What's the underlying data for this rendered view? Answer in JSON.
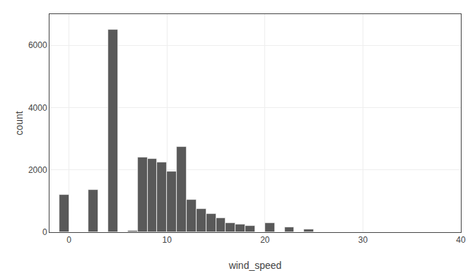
{
  "chart_data": {
    "type": "histogram",
    "bins": [
      -1,
      0,
      1,
      2,
      3,
      4,
      5,
      6,
      7,
      8,
      9,
      10,
      11,
      12,
      13,
      14,
      15,
      16,
      17,
      18,
      19,
      20,
      21,
      22,
      23,
      24,
      25,
      26
    ],
    "values": [
      1200,
      0,
      0,
      1350,
      0,
      6500,
      0,
      50,
      2400,
      2350,
      2250,
      1950,
      2750,
      1050,
      750,
      600,
      450,
      300,
      250,
      200,
      0,
      300,
      0,
      150,
      0,
      100,
      0
    ],
    "color": "#595959",
    "xlabel": "wind_speed",
    "ylabel": "count",
    "xlim": [
      -2,
      40
    ],
    "ylim": [
      0,
      7000
    ],
    "xticks": [
      0,
      10,
      20,
      30,
      40
    ],
    "yticks": [
      0,
      2000,
      4000,
      6000
    ],
    "grid": true
  }
}
